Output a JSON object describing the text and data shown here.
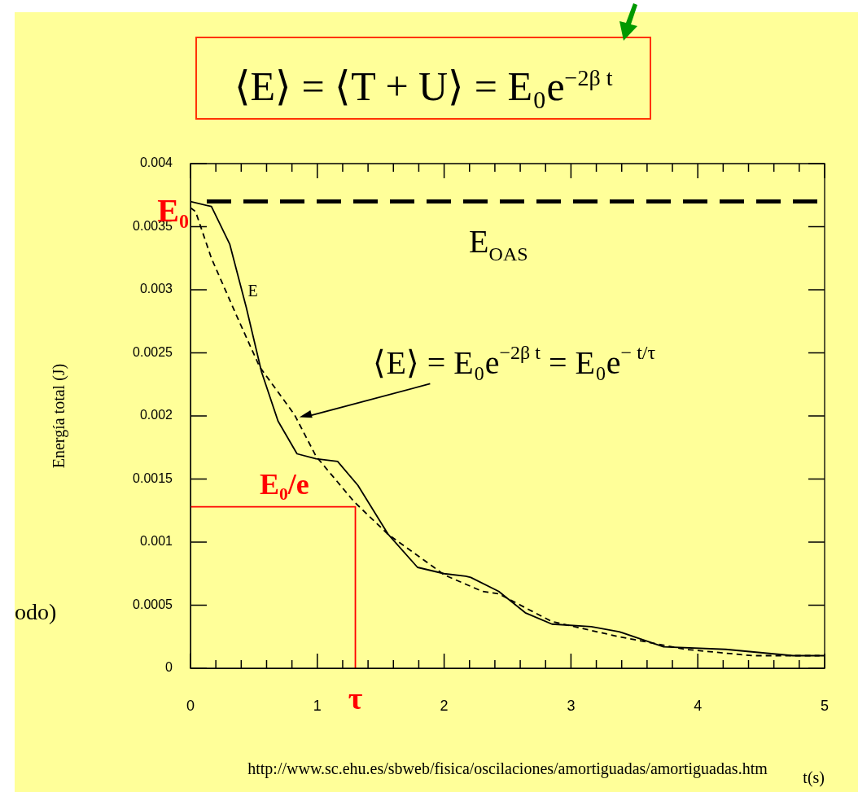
{
  "chart_data": {
    "type": "line",
    "title": "⟨E⟩ = ⟨T + U⟩ = E₀e$^{−2β t}$",
    "xlabel": "t(s)",
    "ylabel": "Energía total (J)",
    "xlim": [
      0,
      5
    ],
    "xticks": [
      0,
      {
        "value": 0.2,
        "label": null
      },
      {
        "value": 0.4,
        "label": null
      },
      {
        "value": 0.6,
        "label": null
      },
      {
        "value": 0.8,
        "label": null
      },
      1,
      {
        "value": 1.2,
        "label": null
      },
      {
        "value": 1.4,
        "label": null
      },
      {
        "value": 1.6,
        "label": null
      },
      {
        "value": 1.8,
        "label": null
      },
      2,
      {
        "value": 2.2,
        "label": null
      },
      {
        "value": 2.4,
        "label": null
      },
      {
        "value": 2.6,
        "label": null
      },
      {
        "value": 2.8,
        "label": null
      },
      3,
      {
        "value": 3.2,
        "label": null
      },
      {
        "value": 3.4,
        "label": null
      },
      {
        "value": 3.6,
        "label": null
      },
      {
        "value": 3.8,
        "label": null
      },
      4,
      {
        "value": 4.2,
        "label": null
      },
      {
        "value": 4.4,
        "label": null
      },
      {
        "value": 4.6,
        "label": null
      },
      {
        "value": 4.8,
        "label": null
      },
      5
    ],
    "ylim": [
      0,
      0.004
    ],
    "yticks": [
      0,
      0.0005,
      0.001,
      0.0015,
      0.002,
      0.0025,
      0.003,
      0.0035,
      0.004
    ],
    "legend": false,
    "series": [
      {
        "name": "E",
        "type": "line",
        "color": "#000000",
        "line_style": "solid",
        "x": [
          0,
          0.165,
          0.31,
          0.44,
          0.56,
          0.69,
          0.84,
          0.99,
          1.16,
          1.32,
          1.56,
          1.79,
          2.0,
          2.17,
          2.21,
          2.43,
          2.64,
          2.85,
          3.16,
          3.38,
          3.73,
          4.22,
          4.75,
          5
        ],
        "values": [
          0.0037,
          0.00366,
          0.00336,
          0.00286,
          0.00235,
          0.00196,
          0.0017,
          0.00166,
          0.00164,
          0.00145,
          0.00106,
          0.0008,
          0.00075,
          0.00073,
          0.00072,
          0.00061,
          0.00044,
          0.00035,
          0.00033,
          0.00029,
          0.00017,
          0.00015,
          0.0001,
          0.0001
        ]
      },
      {
        "name": "⟨E⟩ = E₀e$^{−2β t}$ = E₀e$^{− t/τ}$",
        "type": "line",
        "color": "#000000",
        "line_style": "dashed",
        "x": [
          0,
          0.04,
          0.165,
          0.37,
          0.545,
          0.82,
          0.99,
          1.29,
          1.56,
          1.92,
          2.0,
          2.3,
          2.43,
          2.85,
          3.38,
          3.9,
          4.43,
          4.96
        ],
        "values": [
          0.00365,
          0.00362,
          0.00325,
          0.00278,
          0.00239,
          0.00201,
          0.00168,
          0.00132,
          0.00106,
          0.0008,
          0.00074,
          0.00061,
          0.00059,
          0.00037,
          0.00025,
          0.00015,
          0.0001,
          0.0001
        ]
      },
      {
        "type": "line",
        "color": "#ff0000",
        "line_style": "solid",
        "x": [
          0,
          1.3,
          1.3
        ],
        "values": [
          0.00128,
          0.00128,
          0
        ]
      }
    ],
    "ref_lines": [
      {
        "axis": "y",
        "value": 0.0037,
        "label": "E$_{OAS}$",
        "color": "#000000",
        "line_style": "dashed"
      }
    ],
    "annotations": [
      "E₀",
      "E₀/e",
      "τ",
      "odo)",
      "http://www.sc.ehu.es/sbweb/fisica/oscilaciones/amortiguadas/amortiguadas.htm"
    ]
  }
}
